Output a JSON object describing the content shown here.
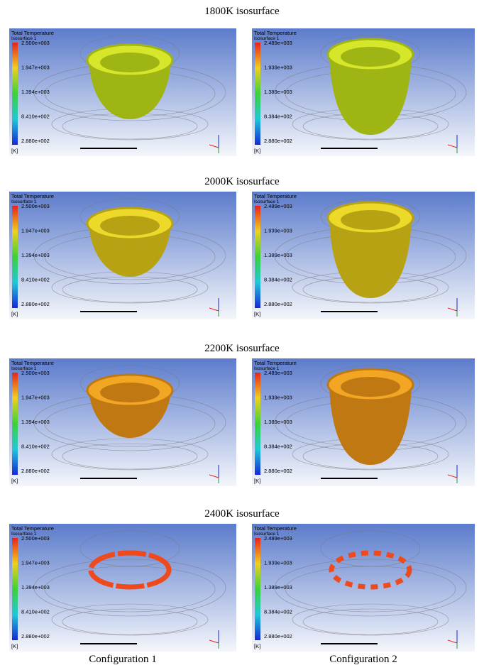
{
  "rows": [
    {
      "title": "1800K isosurface",
      "panels": [
        {
          "legend_title": "Total Temperature",
          "legend_subtitle": "Isosurface 1",
          "scale_labels": [
            "2.500e+003",
            "1.947e+003",
            "1.394e+003",
            "8.410e+002",
            "2.880e+002"
          ],
          "unit": "[K]"
        },
        {
          "legend_title": "Total Temperature",
          "legend_subtitle": "Isosurface 1",
          "scale_labels": [
            "2.489e+003",
            "1.939e+003",
            "1.389e+003",
            "8.384e+002",
            "2.880e+002"
          ],
          "unit": "[K]"
        }
      ]
    },
    {
      "title": "2000K isosurface",
      "panels": [
        {
          "legend_title": "Total Temperature",
          "legend_subtitle": "Isosurface 1",
          "scale_labels": [
            "2.500e+003",
            "1.947e+003",
            "1.394e+003",
            "8.410e+002",
            "2.880e+002"
          ],
          "unit": "[K]"
        },
        {
          "legend_title": "Total Temperature",
          "legend_subtitle": "Isosurface 1",
          "scale_labels": [
            "2.489e+003",
            "1.939e+003",
            "1.389e+003",
            "8.384e+002",
            "2.880e+002"
          ],
          "unit": "[K]"
        }
      ]
    },
    {
      "title": "2200K isosurface",
      "panels": [
        {
          "legend_title": "Total Temperature",
          "legend_subtitle": "Isosurface 1",
          "scale_labels": [
            "2.500e+003",
            "1.947e+003",
            "1.394e+003",
            "8.410e+002",
            "2.880e+002"
          ],
          "unit": "[K]"
        },
        {
          "legend_title": "Total Temperature",
          "legend_subtitle": "Isosurface 1",
          "scale_labels": [
            "2.489e+003",
            "1.939e+003",
            "1.389e+003",
            "8.384e+002",
            "2.880e+002"
          ],
          "unit": "[K]"
        }
      ]
    },
    {
      "title": "2400K isosurface",
      "panels": [
        {
          "legend_title": "Total Temperature",
          "legend_subtitle": "Isosurface 1",
          "scale_labels": [
            "2.500e+003",
            "1.947e+003",
            "1.394e+003",
            "8.410e+002",
            "2.880e+002"
          ],
          "unit": "[K]"
        },
        {
          "legend_title": "Total Temperature",
          "legend_subtitle": "Isosurface 1",
          "scale_labels": [
            "2.489e+003",
            "1.939e+003",
            "1.389e+003",
            "8.384e+002",
            "2.880e+002"
          ],
          "unit": "[K]"
        }
      ]
    }
  ],
  "captions": [
    "Configuration 1",
    "Configuration 2"
  ]
}
